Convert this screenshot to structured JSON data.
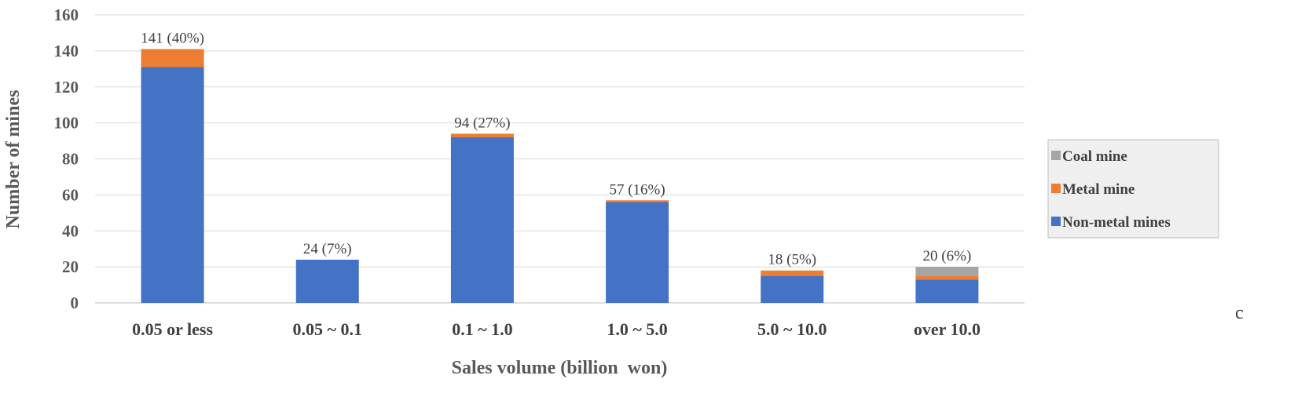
{
  "chart_data": {
    "type": "bar",
    "stacked": true,
    "categories": [
      "0.05 or less",
      "0.05 ~ 0.1",
      "0.1 ~ 1.0",
      "1.0 ~ 5.0",
      "5.0 ~ 10.0",
      "over 10.0"
    ],
    "series": [
      {
        "name": "Non-metal mines",
        "color": "#4472C4",
        "values": [
          131,
          24,
          92,
          56,
          15,
          13
        ]
      },
      {
        "name": "Metal mine",
        "color": "#ED7D31",
        "values": [
          10,
          0,
          2,
          1,
          3,
          2
        ]
      },
      {
        "name": "Coal mine",
        "color": "#A5A5A5",
        "values": [
          0,
          0,
          0,
          0,
          0,
          5
        ]
      }
    ],
    "data_labels": [
      "141 (40%)",
      "24 (7%)",
      "94 (27%)",
      "57 (16%)",
      "18 (5%)",
      "20 (6%)"
    ],
    "xlabel": "Sales volume (billion  won)",
    "ylabel": "Number of mines",
    "ylim": [
      0,
      160
    ],
    "yticks": [
      0,
      20,
      40,
      60,
      80,
      100,
      120,
      140,
      160
    ],
    "grid": true,
    "legend_position": "right",
    "legend_order": [
      "Coal mine",
      "Metal mine",
      "Non-metal mines"
    ]
  },
  "stray_text": "c"
}
